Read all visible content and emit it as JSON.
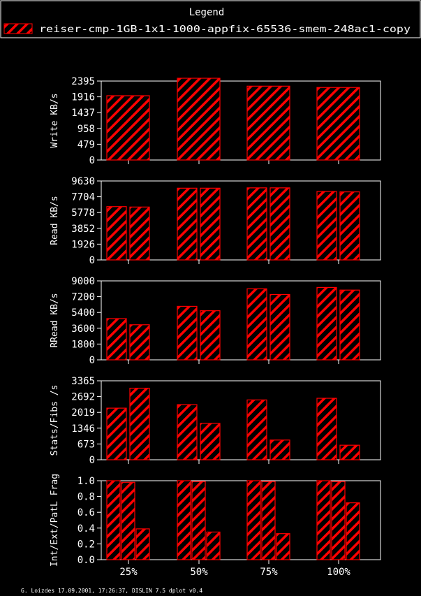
{
  "legend": {
    "title": "Legend",
    "entry": "reiser-cmp-1GB-1x1-1000-appfix-65536-smem-248ac1-copy"
  },
  "footer": "G. Loizdes 17.09.2001, 17:26:37, DISLIN 7.5 dplot v0.4",
  "colors": {
    "bar": "#ff0000",
    "background": "#000000",
    "frame": "#ffffff"
  },
  "chart_data": [
    {
      "type": "bar",
      "ylabel": "Write KB/s",
      "categories": [
        "25%",
        "50%",
        "75%",
        "100%"
      ],
      "yticks": [
        "0",
        "479",
        "958",
        "1437",
        "1916",
        "2395"
      ],
      "ylim": [
        0,
        2395
      ],
      "series": [
        {
          "values": [
            1950,
            2480,
            2240,
            2200
          ]
        }
      ]
    },
    {
      "type": "bar",
      "ylabel": "Read KB/s",
      "categories": [
        "25%",
        "50%",
        "75%",
        "100%"
      ],
      "yticks": [
        "0",
        "1926",
        "3852",
        "5778",
        "7704",
        "9630"
      ],
      "ylim": [
        0,
        9630
      ],
      "series": [
        {
          "values": [
            6500,
            8750,
            8790,
            8350
          ]
        },
        {
          "values": [
            6450,
            8750,
            8790,
            8300
          ]
        }
      ]
    },
    {
      "type": "bar",
      "ylabel": "RRead KB/s",
      "categories": [
        "25%",
        "50%",
        "75%",
        "100%"
      ],
      "yticks": [
        "0",
        "1800",
        "3600",
        "5400",
        "7200",
        "9000"
      ],
      "ylim": [
        0,
        9000
      ],
      "series": [
        {
          "values": [
            4700,
            6100,
            8100,
            8250
          ]
        },
        {
          "values": [
            4000,
            5600,
            7450,
            7950
          ]
        }
      ]
    },
    {
      "type": "bar",
      "ylabel": "Stats/Fibs /s",
      "categories": [
        "25%",
        "50%",
        "75%",
        "100%"
      ],
      "yticks": [
        "0",
        "673",
        "1346",
        "2019",
        "2692",
        "3365"
      ],
      "ylim": [
        0,
        3365
      ],
      "series": [
        {
          "values": [
            2200,
            2350,
            2550,
            2620
          ]
        },
        {
          "values": [
            3050,
            1550,
            840,
            620
          ]
        }
      ]
    },
    {
      "type": "bar",
      "ylabel": "Int/Ext/PatL Frag",
      "categories": [
        "25%",
        "50%",
        "75%",
        "100%"
      ],
      "yticks": [
        "0.0",
        "0.2",
        "0.4",
        "0.6",
        "0.8",
        "1.0"
      ],
      "ylim": [
        0,
        1
      ],
      "series": [
        {
          "values": [
            1.0,
            1.0,
            1.0,
            1.0
          ]
        },
        {
          "values": [
            0.98,
            0.99,
            0.99,
            0.99
          ]
        },
        {
          "values": [
            0.39,
            0.35,
            0.33,
            0.72
          ]
        }
      ]
    }
  ]
}
